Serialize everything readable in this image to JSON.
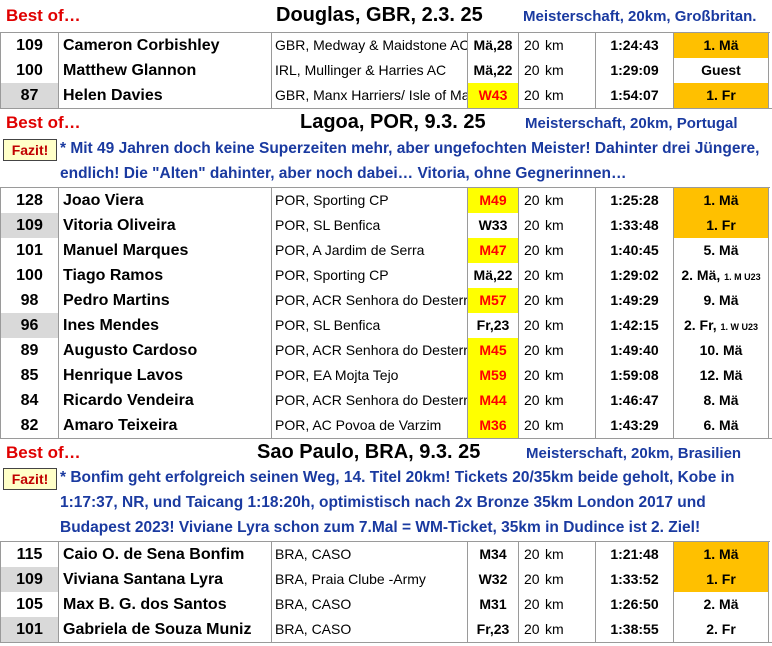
{
  "sections": [
    {
      "best_label": "Best of…",
      "title": "Douglas, GBR, 2.3. 25",
      "info": "Meisterschaft, 20km, Großbritan.",
      "fazit": null,
      "rows": [
        {
          "pts": "109",
          "name": "Cameron Corbishley",
          "club": "GBR, Medway & Maidstone AC",
          "cat": "Mä,28",
          "dist": "20",
          "unit": "km",
          "time": "1:24:43",
          "place": "1. Mä",
          "place_sub": ""
        },
        {
          "pts": "100",
          "name": "Matthew Glannon",
          "club": "IRL, Mullinger & Harries AC",
          "cat": "Mä,22",
          "dist": "20",
          "unit": "km",
          "time": "1:29:09",
          "place": "Guest",
          "place_sub": ""
        },
        {
          "pts": "87",
          "name": "Helen Davies",
          "club": "GBR, Manx Harriers/ Isle of Man",
          "cat": "W43",
          "dist": "20",
          "unit": "km",
          "time": "1:54:07",
          "place": "1. Fr",
          "place_sub": ""
        }
      ]
    },
    {
      "best_label": "Best of…",
      "title": "Lagoa, POR, 9.3. 25",
      "info": "Meisterschaft, 20km, Portugal",
      "fazit_label": "Fazit!",
      "fazit": "* Mit 49 Jahren doch keine Superzeiten mehr, aber ungefochten Meister! Dahinter drei Jüngere, endlich! Die \"Alten\" dahinter, aber noch dabei… Vitoria, ohne Gegnerinnen…",
      "rows": [
        {
          "pts": "128",
          "name": "Joao Viera",
          "club": "POR, Sporting CP",
          "cat": "M49",
          "dist": "20",
          "unit": "km",
          "time": "1:25:28",
          "place": "1. Mä",
          "place_sub": ""
        },
        {
          "pts": "109",
          "name": "Vitoria Oliveira",
          "club": "POR, SL Benfica",
          "cat": "W33",
          "dist": "20",
          "unit": "km",
          "time": "1:33:48",
          "place": "1. Fr",
          "place_sub": ""
        },
        {
          "pts": "101",
          "name": "Manuel Marques",
          "club": "POR, A Jardim de Serra",
          "cat": "M47",
          "dist": "20",
          "unit": "km",
          "time": "1:40:45",
          "place": "5. Mä",
          "place_sub": ""
        },
        {
          "pts": "100",
          "name": "Tiago Ramos",
          "club": "POR, Sporting CP",
          "cat": "Mä,22",
          "dist": "20",
          "unit": "km",
          "time": "1:29:02",
          "place": "2. Mä,",
          "place_sub": "1. M U23"
        },
        {
          "pts": "98",
          "name": "Pedro Martins",
          "club": "POR, ACR Senhora do Desterro",
          "cat": "M57",
          "dist": "20",
          "unit": "km",
          "time": "1:49:29",
          "place": "9. Mä",
          "place_sub": ""
        },
        {
          "pts": "96",
          "name": "Ines Mendes",
          "club": "POR, SL Benfica",
          "cat": "Fr,23",
          "dist": "20",
          "unit": "km",
          "time": "1:42:15",
          "place": "2. Fr,",
          "place_sub": "1. W U23"
        },
        {
          "pts": "89",
          "name": "Augusto Cardoso",
          "club": "POR, ACR Senhora do Desterro",
          "cat": "M45",
          "dist": "20",
          "unit": "km",
          "time": "1:49:40",
          "place": "10. Mä",
          "place_sub": ""
        },
        {
          "pts": "85",
          "name": "Henrique Lavos",
          "club": "POR, EA Mojta Tejo",
          "cat": "M59",
          "dist": "20",
          "unit": "km",
          "time": "1:59:08",
          "place": "12. Mä",
          "place_sub": ""
        },
        {
          "pts": "84",
          "name": "Ricardo Vendeira",
          "club": "POR, ACR Senhora do Desterro",
          "cat": "M44",
          "dist": "20",
          "unit": "km",
          "time": "1:46:47",
          "place": "8. Mä",
          "place_sub": ""
        },
        {
          "pts": "82",
          "name": "Amaro Teixeira",
          "club": "POR, AC Povoa de Varzim",
          "cat": "M36",
          "dist": "20",
          "unit": "km",
          "time": "1:43:29",
          "place": "6. Mä",
          "place_sub": ""
        }
      ]
    },
    {
      "best_label": "Best of…",
      "title": "Sao Paulo, BRA, 9.3. 25",
      "info": "Meisterschaft, 20km, Brasilien",
      "fazit_label": "Fazit!",
      "fazit": "* Bonfim geht erfolgreich seinen Weg, 14. Titel 20km! Tickets 20/35km beide geholt, Kobe in 1:17:37, NR, und Taicang 1:18:20h, optimistisch nach 2x Bronze 35km London 2017 und Budapest 2023! Viviane Lyra schon zum 7.Mal = WM-Ticket, 35km in Dudince ist 2. Ziel!",
      "rows": [
        {
          "pts": "115",
          "name": "Caio O. de Sena Bonfim",
          "club": "BRA, CASO",
          "cat": "M34",
          "dist": "20",
          "unit": "km",
          "time": "1:21:48",
          "place": "1. Mä",
          "place_sub": ""
        },
        {
          "pts": "109",
          "name": "Viviana Santana Lyra",
          "club": "BRA, Praia Clube -Army",
          "cat": "W32",
          "dist": "20",
          "unit": "km",
          "time": "1:33:52",
          "place": "1. Fr",
          "place_sub": ""
        },
        {
          "pts": "105",
          "name": "Max B. G. dos Santos",
          "club": "BRA, CASO",
          "cat": "M31",
          "dist": "20",
          "unit": "km",
          "time": "1:26:50",
          "place": "2. Mä",
          "place_sub": ""
        },
        {
          "pts": "101",
          "name": "Gabriela de Souza Muniz",
          "club": "BRA, CASO",
          "cat": "Fr,23",
          "dist": "20",
          "unit": "km",
          "time": "1:38:55",
          "place": "2. Fr",
          "place_sub": ""
        }
      ]
    }
  ],
  "colors": {
    "best_label": "#e00000",
    "info_text": "#1a3aa0",
    "cat_highlight": "#ffff00",
    "place_highlight": "#ffc000",
    "pts_gray": "#d9d9d9"
  }
}
